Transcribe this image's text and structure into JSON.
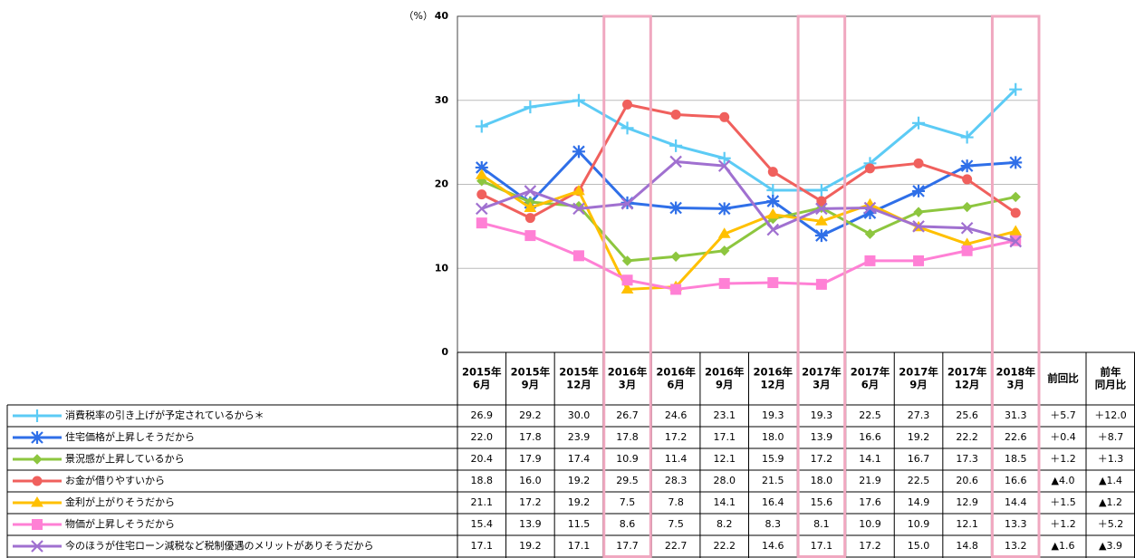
{
  "chart_data": {
    "type": "line",
    "y_unit": "（%）",
    "ylim": [
      0,
      40
    ],
    "yticks": [
      0,
      10,
      20,
      30,
      40
    ],
    "grid": true,
    "categories": [
      [
        "2015年",
        "6月"
      ],
      [
        "2015年",
        "9月"
      ],
      [
        "2015年",
        "12月"
      ],
      [
        "2016年",
        "3月"
      ],
      [
        "2016年",
        "6月"
      ],
      [
        "2016年",
        "9月"
      ],
      [
        "2016年",
        "12月"
      ],
      [
        "2017年",
        "3月"
      ],
      [
        "2017年",
        "6月"
      ],
      [
        "2017年",
        "9月"
      ],
      [
        "2017年",
        "12月"
      ],
      [
        "2018年",
        "3月"
      ]
    ],
    "table_columns": [
      [
        "前回比"
      ],
      [
        "前年",
        "同月比"
      ]
    ],
    "highlight": [
      3,
      7,
      11
    ],
    "series": [
      {
        "name": "消費税率の引き上げが予定されているから＊",
        "color": "#5ccbf5",
        "marker": "plus",
        "values": [
          26.9,
          29.2,
          30.0,
          26.7,
          24.6,
          23.1,
          19.3,
          19.3,
          22.5,
          27.3,
          25.6,
          31.3
        ],
        "value_labels": [
          "26.9",
          "29.2",
          "30.0",
          "26.7",
          "24.6",
          "23.1",
          "19.3",
          "19.3",
          "22.5",
          "27.3",
          "25.6",
          "31.3"
        ],
        "changes": [
          "＋5.7",
          "＋12.0"
        ]
      },
      {
        "name": "住宅価格が上昇しそうだから",
        "color": "#2f6fe8",
        "marker": "star",
        "values": [
          22.0,
          17.8,
          23.9,
          17.8,
          17.2,
          17.1,
          18.0,
          13.9,
          16.6,
          19.2,
          22.2,
          22.6
        ],
        "value_labels": [
          "22.0",
          "17.8",
          "23.9",
          "17.8",
          "17.2",
          "17.1",
          "18.0",
          "13.9",
          "16.6",
          "19.2",
          "22.2",
          "22.6"
        ],
        "changes": [
          "＋0.4",
          "＋8.7"
        ]
      },
      {
        "name": "景況感が上昇しているから",
        "color": "#8dc63f",
        "marker": "diamond",
        "values": [
          20.4,
          17.9,
          17.4,
          10.9,
          11.4,
          12.1,
          15.9,
          17.2,
          14.1,
          16.7,
          17.3,
          18.5
        ],
        "value_labels": [
          "20.4",
          "17.9",
          "17.4",
          "10.9",
          "11.4",
          "12.1",
          "15.9",
          "17.2",
          "14.1",
          "16.7",
          "17.3",
          "18.5"
        ],
        "changes": [
          "＋1.2",
          "＋1.3"
        ]
      },
      {
        "name": "お金が借りやすいから",
        "color": "#f0605d",
        "marker": "circle",
        "values": [
          18.8,
          16.0,
          19.2,
          29.5,
          28.3,
          28.0,
          21.5,
          18.0,
          21.9,
          22.5,
          20.6,
          16.6
        ],
        "value_labels": [
          "18.8",
          "16.0",
          "19.2",
          "29.5",
          "28.3",
          "28.0",
          "21.5",
          "18.0",
          "21.9",
          "22.5",
          "20.6",
          "16.6"
        ],
        "changes": [
          "▲4.0",
          "▲1.4"
        ]
      },
      {
        "name": "金利が上がりそうだから",
        "color": "#ffc000",
        "marker": "triangle",
        "values": [
          21.1,
          17.2,
          19.2,
          7.5,
          7.8,
          14.1,
          16.4,
          15.6,
          17.6,
          14.9,
          12.9,
          14.4
        ],
        "value_labels": [
          "21.1",
          "17.2",
          "19.2",
          "7.5",
          "7.8",
          "14.1",
          "16.4",
          "15.6",
          "17.6",
          "14.9",
          "12.9",
          "14.4"
        ],
        "changes": [
          "＋1.5",
          "▲1.2"
        ]
      },
      {
        "name": "物価が上昇しそうだから",
        "color": "#ff80d5",
        "marker": "square",
        "values": [
          15.4,
          13.9,
          11.5,
          8.6,
          7.5,
          8.2,
          8.3,
          8.1,
          10.9,
          10.9,
          12.1,
          13.3
        ],
        "value_labels": [
          "15.4",
          "13.9",
          "11.5",
          "8.6",
          "7.5",
          "8.2",
          "8.3",
          "8.1",
          "10.9",
          "10.9",
          "12.1",
          "13.3"
        ],
        "changes": [
          "＋1.2",
          "＋5.2"
        ]
      },
      {
        "name": "今のほうが住宅ローン減税など税制優遇のメリットがありそうだから",
        "color": "#a070d0",
        "marker": "x",
        "values": [
          17.1,
          19.2,
          17.1,
          17.7,
          22.7,
          22.2,
          14.6,
          17.1,
          17.2,
          15.0,
          14.8,
          13.2
        ],
        "value_labels": [
          "17.1",
          "19.2",
          "17.1",
          "17.7",
          "22.7",
          "22.2",
          "14.6",
          "17.1",
          "17.2",
          "15.0",
          "14.8",
          "13.2"
        ],
        "changes": [
          "▲1.6",
          "▲3.9"
        ]
      }
    ]
  }
}
